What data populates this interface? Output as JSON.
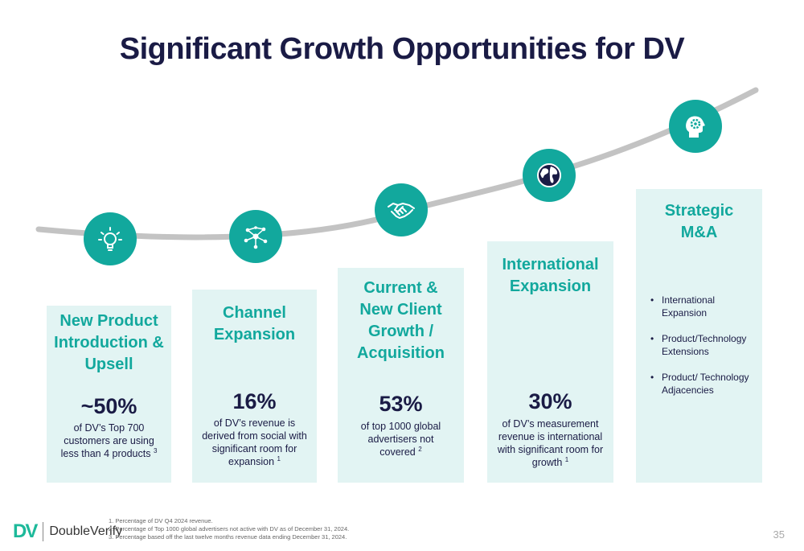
{
  "title": "Significant Growth Opportunities for DV",
  "colors": {
    "teal": "#12a89d",
    "navy": "#1a1b45",
    "card_bg": "#e2f4f3",
    "curve": "#c3c3c3"
  },
  "cards": [
    {
      "icon": "lightbulb-icon",
      "title_lines": [
        "New Product",
        "Introduction &",
        "Upsell"
      ],
      "stat": "~50%",
      "desc_lines": [
        "of DV’s Top 700",
        "customers are using",
        "less than 4 products"
      ],
      "sup": "3"
    },
    {
      "icon": "network-icon",
      "title_lines": [
        "Channel",
        "Expansion"
      ],
      "stat": "16%",
      "desc_lines": [
        "of DV’s revenue is",
        "derived from social with",
        "significant room for",
        "expansion"
      ],
      "sup": "1"
    },
    {
      "icon": "handshake-icon",
      "title_lines": [
        "Current &",
        "New Client",
        "Growth /",
        "Acquisition"
      ],
      "stat": "53%",
      "desc_lines": [
        "of top 1000 global",
        "advertisers not",
        "covered"
      ],
      "sup": "2"
    },
    {
      "icon": "globe-icon",
      "title_lines": [
        "International",
        "Expansion"
      ],
      "stat": "30%",
      "desc_lines": [
        "of DV’s measurement",
        "revenue is international",
        "with significant room for",
        "growth"
      ],
      "sup": "1"
    },
    {
      "icon": "head-gear-icon",
      "title_lines": [
        "Strategic",
        "M&A"
      ],
      "bullets": [
        [
          "International",
          "Expansion"
        ],
        [
          "Product/Technology",
          "Extensions"
        ],
        [
          "Product/ Technology",
          "Adjacencies"
        ]
      ]
    }
  ],
  "logo": {
    "mark": "DV",
    "text": "DoubleVerify"
  },
  "footnotes": [
    "1. Percentage of DV Q4 2024 revenue.",
    "2. Percentage of Top 1000 global advertisers not active with DV as of December 31, 2024.",
    "3. Percentage based off the last twelve months revenue data ending December 31, 2024."
  ],
  "page_number": "35"
}
